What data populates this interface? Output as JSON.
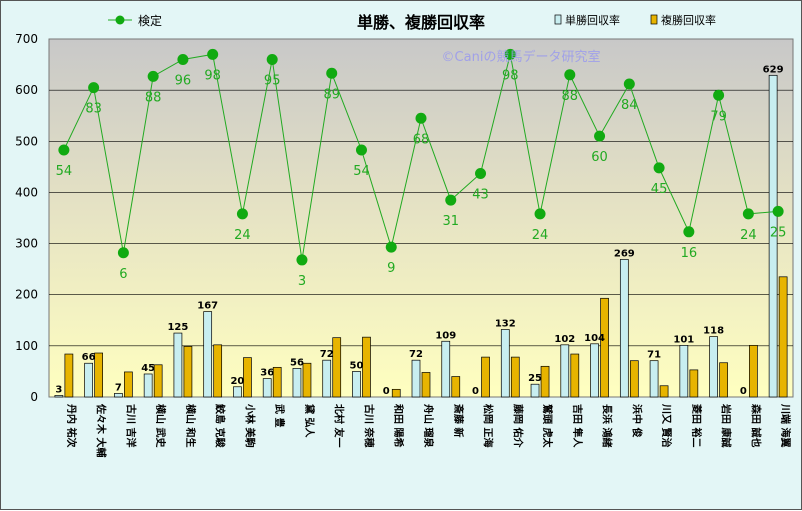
{
  "chart_data": {
    "type": "bar+line",
    "title": "単勝、複勝回収率",
    "watermark": "©Caniの競馬データ研究室",
    "ylim": [
      0,
      700
    ],
    "yticks": [
      0,
      100,
      200,
      300,
      400,
      500,
      600,
      700
    ],
    "legend": {
      "line": "検定",
      "bar1": "単勝回収率",
      "bar2": "複勝回収率"
    },
    "colors": {
      "bar1": "#c8eef0",
      "bar2": "#e7b400",
      "line": "#22aa22",
      "marker": "#11aa11",
      "label": "#22aa22"
    },
    "categories": [
      "丹内 祐次",
      "佐々木 大輔",
      "古川 吉洋",
      "横山 武史",
      "横山 和生",
      "鮫島 克駿",
      "小林 美駒",
      "武 豊",
      "黛 弘人",
      "北村 友一",
      "古川 奈穂",
      "和田 陽希",
      "舟山 瑠泉",
      "斎藤 新",
      "松岡 正海",
      "藤岡 佑介",
      "鷲頭 虎太",
      "吉田 隼人",
      "長浜 鴻緒",
      "浜中 俊",
      "川又 賢治",
      "菱田 裕二",
      "岩田 康誠",
      "森田 誠也",
      "川端 海翼"
    ],
    "series": [
      {
        "name": "単勝回収率",
        "values": [
          3,
          66,
          7,
          45,
          125,
          167,
          20,
          36,
          56,
          72,
          50,
          0,
          72,
          109,
          0,
          132,
          25,
          102,
          104,
          269,
          71,
          101,
          118,
          0,
          629
        ]
      },
      {
        "name": "複勝回収率",
        "values": [
          84,
          86,
          49,
          63,
          99,
          102,
          77,
          58,
          66,
          116,
          117,
          15,
          48,
          40,
          78,
          78,
          60,
          84,
          193,
          71,
          22,
          53,
          67,
          101,
          235
        ]
      },
      {
        "name": "検定",
        "values": [
          483,
          605,
          282,
          627,
          660,
          670,
          358,
          660,
          268,
          633,
          483,
          293,
          545,
          385,
          437,
          670,
          358,
          630,
          510,
          612,
          448,
          323,
          590,
          358,
          363
        ],
        "labels": [
          54,
          83,
          6,
          88,
          96,
          98,
          24,
          95,
          3,
          89,
          54,
          9,
          68,
          31,
          43,
          98,
          24,
          88,
          60,
          84,
          45,
          16,
          79,
          24,
          25
        ]
      }
    ]
  }
}
